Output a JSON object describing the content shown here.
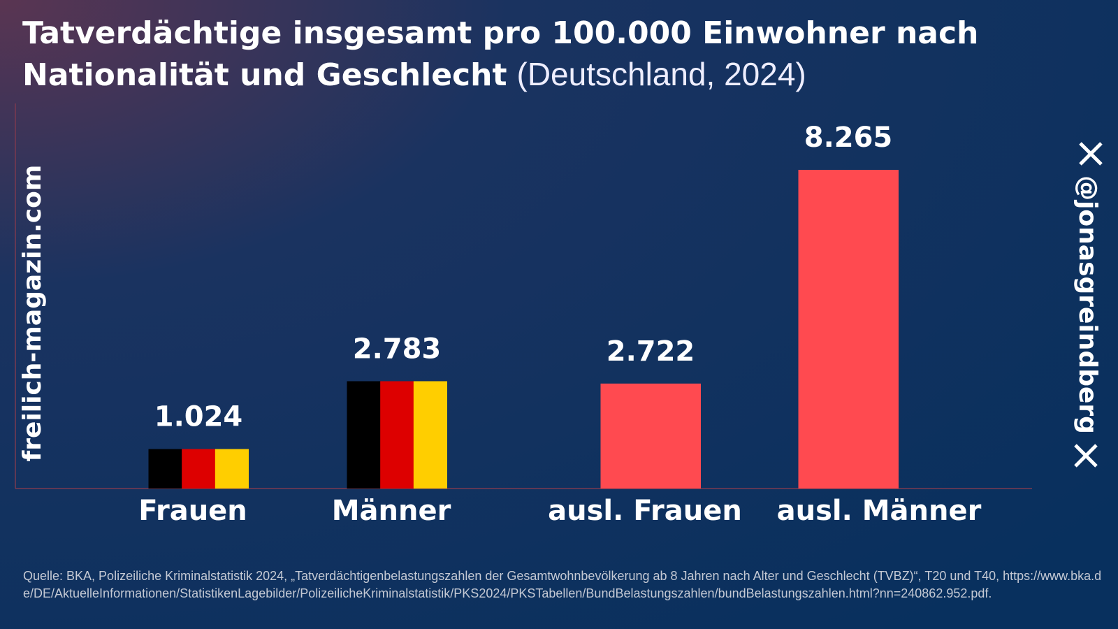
{
  "chart_data": {
    "type": "bar",
    "title": "Tatverdächtige insgesamt pro 100.000 Einwohner nach Nationalität und Geschlecht",
    "subtitle": "(Deutschland, 2024)",
    "categories": [
      "Frauen",
      "Männer",
      "ausl. Frauen",
      "ausl. Männer"
    ],
    "values": [
      1024,
      2783,
      2722,
      8265
    ],
    "value_labels": [
      "1.024",
      "2.783",
      "2.722",
      "8.265"
    ],
    "bar_colors": [
      [
        "#000000",
        "#dd0000",
        "#ffce00"
      ],
      [
        "#000000",
        "#dd0000",
        "#ffce00"
      ],
      [
        "#ff4a50"
      ],
      [
        "#ff4a50"
      ]
    ],
    "source": "Quelle: BKA, Polizeiliche Kriminalstatistik 2024, „Tatverdächtigenbelastungszahlen der Gesamtwohnbevölkerung ab 8 Jahren nach Alter und Geschlecht (TVBZ)“, T20 und T40, https://www.bka.de/DE/AktuelleInformationen/StatistikenLagebilder/PolizeilicheKriminalstatistik/PKS2024/PKSTabellen/BundBelastungszahlen/bundBelastungszahlen.html?nn=240862.952.pdf."
  },
  "watermarks": {
    "left": "freilich-magazin.com",
    "right": "@jonasgreindberg"
  }
}
